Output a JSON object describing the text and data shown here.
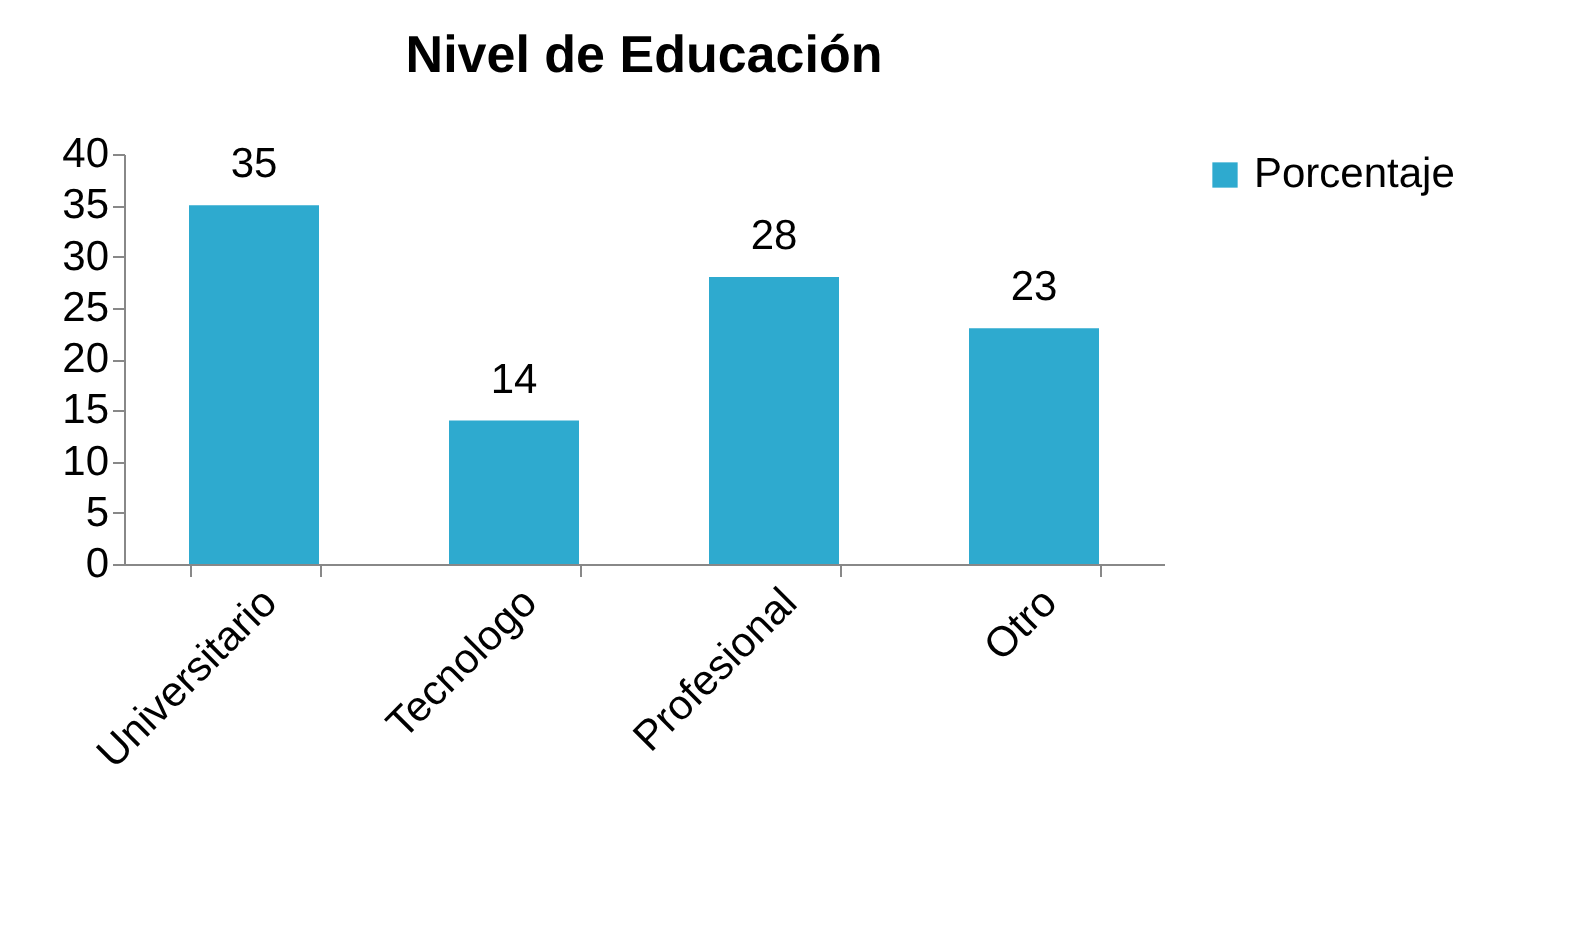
{
  "chart_data": {
    "type": "bar",
    "title": "Nivel de Educación",
    "categories": [
      "Universitario",
      "Tecnologo",
      "Profesional",
      "Otro"
    ],
    "series": [
      {
        "name": "Porcentaje",
        "color": "#2eaacf",
        "values": [
          35,
          14,
          28,
          23
        ]
      }
    ],
    "ylim": [
      0,
      40
    ],
    "yticks": [
      0,
      5,
      10,
      15,
      20,
      25,
      30,
      35,
      40
    ],
    "data_labels": true,
    "legend": "right"
  }
}
